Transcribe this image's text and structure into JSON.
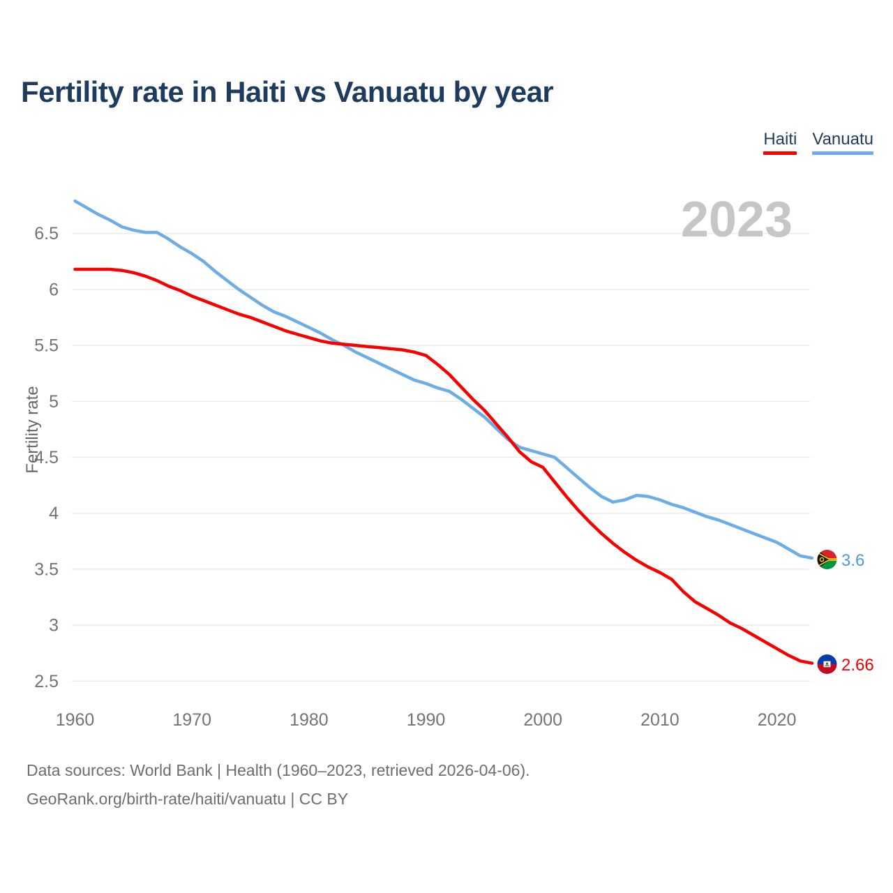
{
  "title": "Fertility rate in Haiti vs Vanuatu by year",
  "watermark": "2023",
  "legend": {
    "items": [
      {
        "label": "Haiti",
        "color": "#f60000"
      },
      {
        "label": "Vanuatu",
        "color": "#6cade8"
      }
    ]
  },
  "end_markers": {
    "haiti": {
      "icon": "haiti-flag-icon",
      "value_label": "2.66",
      "color": "#f60000"
    },
    "vanuatu": {
      "icon": "vanuatu-flag-icon",
      "value_label": "3.6",
      "color": "#4f9ad8"
    }
  },
  "colors": {
    "haiti_red": "#f60000",
    "vanuatu_blue": "#6cade8",
    "title_navy": "#1d3b5c",
    "tick_gray": "#737373",
    "footer_gray": "#6d6d6d",
    "watermark_gray": "#c6c6c6",
    "grid": "#e9e9e9"
  },
  "footer": {
    "line1": "Data sources: World Bank | Health (1960–2023, retrieved 2026-04-06).",
    "line2": "GeoRank.org/birth-rate/haiti/vanuatu | CC BY"
  },
  "chart_data": {
    "type": "line",
    "title": "Fertility rate in Haiti vs Vanuatu by year",
    "xlabel": "",
    "ylabel": "Fertility rate",
    "grid": "horizontal",
    "legend_position": "top-right",
    "xlim": [
      1960,
      2023
    ],
    "ylim": [
      2.5,
      6.8
    ],
    "xticks": [
      1960,
      1970,
      1980,
      1990,
      2000,
      2010,
      2020
    ],
    "yticks": [
      "6.5",
      "6",
      "5.5",
      "5",
      "4.5",
      "4",
      "3.5",
      "3",
      "2.5"
    ],
    "x": [
      1960,
      1961,
      1962,
      1963,
      1964,
      1965,
      1966,
      1967,
      1968,
      1969,
      1970,
      1971,
      1972,
      1973,
      1974,
      1975,
      1976,
      1977,
      1978,
      1979,
      1980,
      1981,
      1982,
      1983,
      1984,
      1985,
      1986,
      1987,
      1988,
      1989,
      1990,
      1991,
      1992,
      1993,
      1994,
      1995,
      1996,
      1997,
      1998,
      1999,
      2000,
      2001,
      2002,
      2003,
      2004,
      2005,
      2006,
      2007,
      2008,
      2009,
      2010,
      2011,
      2012,
      2013,
      2014,
      2015,
      2016,
      2017,
      2018,
      2019,
      2020,
      2021,
      2022,
      2023
    ],
    "series": [
      {
        "name": "Haiti",
        "color": "#f60000",
        "end_label": "2.66",
        "values": [
          6.18,
          6.18,
          6.18,
          6.18,
          6.17,
          6.15,
          6.12,
          6.08,
          6.03,
          5.99,
          5.94,
          5.9,
          5.86,
          5.82,
          5.78,
          5.75,
          5.71,
          5.67,
          5.63,
          5.6,
          5.57,
          5.54,
          5.52,
          5.51,
          5.5,
          5.49,
          5.48,
          5.47,
          5.46,
          5.44,
          5.41,
          5.33,
          5.24,
          5.13,
          5.02,
          4.92,
          4.8,
          4.68,
          4.55,
          4.46,
          4.41,
          4.28,
          4.15,
          4.03,
          3.92,
          3.82,
          3.73,
          3.65,
          3.58,
          3.52,
          3.47,
          3.41,
          3.3,
          3.21,
          3.15,
          3.09,
          3.02,
          2.97,
          2.91,
          2.85,
          2.79,
          2.73,
          2.68,
          2.66
        ]
      },
      {
        "name": "Vanuatu",
        "color": "#6cade8",
        "end_label": "3.6",
        "values": [
          6.79,
          6.73,
          6.67,
          6.62,
          6.56,
          6.53,
          6.51,
          6.51,
          6.45,
          6.38,
          6.32,
          6.25,
          6.16,
          6.08,
          6.0,
          5.93,
          5.86,
          5.8,
          5.76,
          5.71,
          5.66,
          5.61,
          5.55,
          5.5,
          5.44,
          5.39,
          5.34,
          5.29,
          5.24,
          5.19,
          5.16,
          5.12,
          5.09,
          5.02,
          4.94,
          4.86,
          4.76,
          4.66,
          4.59,
          4.56,
          4.53,
          4.5,
          4.41,
          4.32,
          4.23,
          4.15,
          4.1,
          4.12,
          4.16,
          4.15,
          4.12,
          4.08,
          4.05,
          4.01,
          3.97,
          3.94,
          3.9,
          3.86,
          3.82,
          3.78,
          3.74,
          3.68,
          3.62,
          3.6
        ]
      }
    ]
  }
}
